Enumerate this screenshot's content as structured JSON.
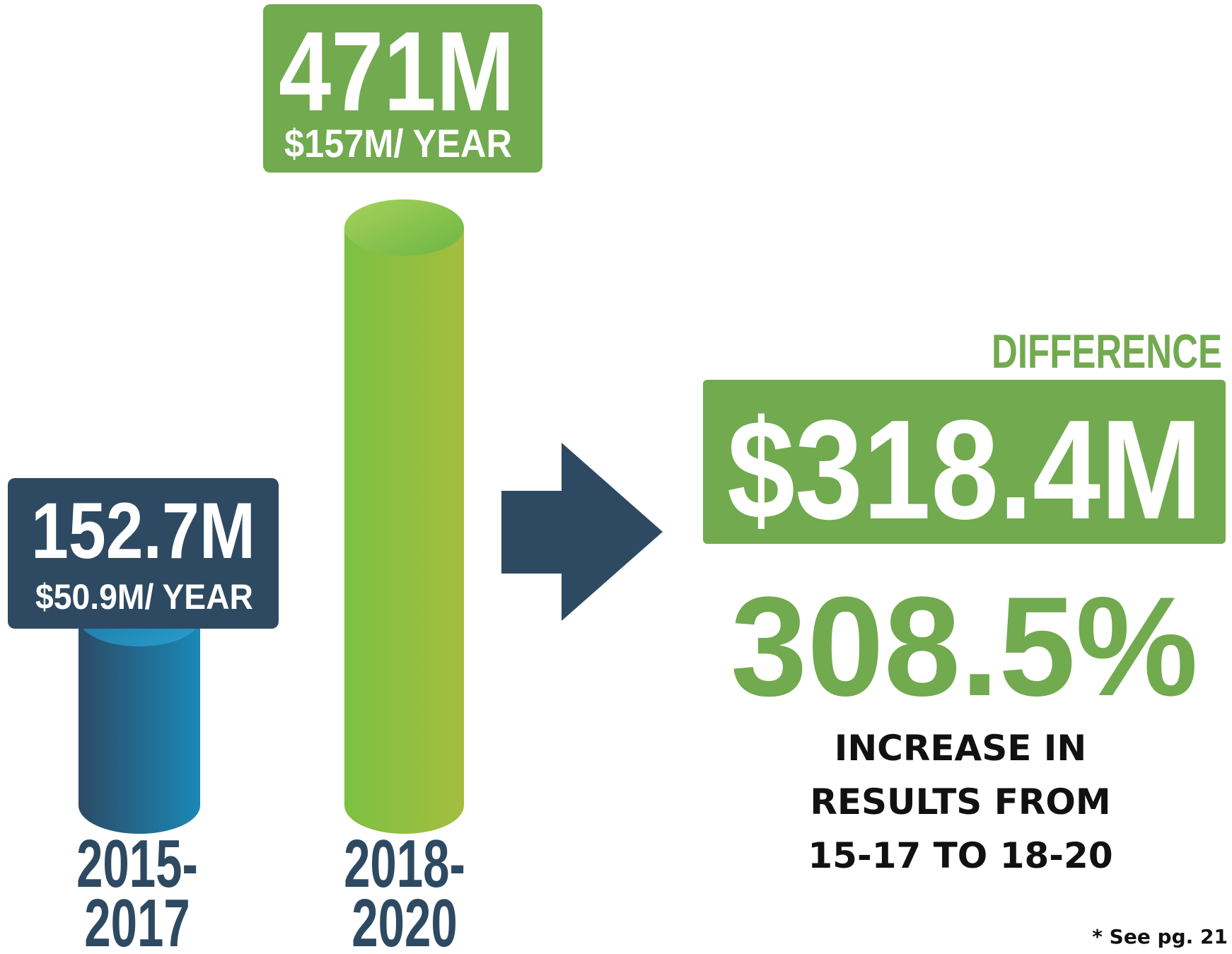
{
  "chart_data": {
    "type": "bar",
    "categories": [
      "2015-\n2017",
      "2018-\n2020"
    ],
    "values": [
      152.7,
      471
    ],
    "value_labels": [
      "152.7M",
      "471M"
    ],
    "per_year_labels": [
      "$50.9M/ YEAR",
      "$157M/ YEAR"
    ],
    "colors": [
      "#2e4a62",
      "#72aa4f"
    ],
    "difference_title": "DIFFERENCE",
    "difference_label": "$318.4M",
    "percent_label": "308.5%",
    "caption": "INCREASE IN\nRESULTS FROM\n15-17 TO 18-20",
    "footnote": "* See pg. 21"
  }
}
